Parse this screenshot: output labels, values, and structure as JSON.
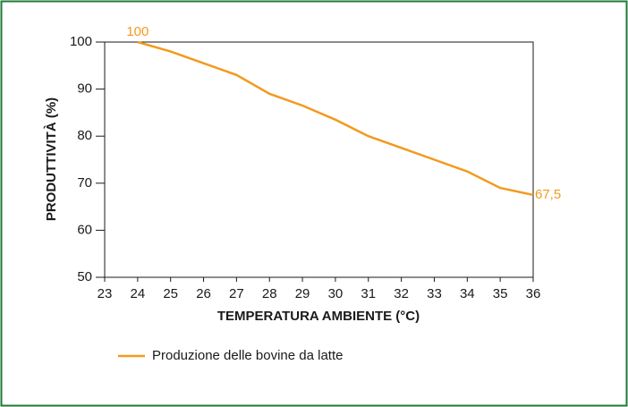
{
  "chart_data": {
    "type": "line",
    "x_label": "TEMPERATURA AMBIENTE (°C)",
    "y_label": "PRODUTTIVITÀ (%)",
    "x": [
      24,
      25,
      26,
      27,
      28,
      29,
      30,
      31,
      32,
      33,
      34,
      35,
      36
    ],
    "series": [
      {
        "name": "Produzione delle bovine da latte",
        "color": "#f29a1f",
        "values": [
          100,
          98,
          95.5,
          93,
          89,
          86.5,
          83.5,
          80,
          77.5,
          75,
          72.5,
          69,
          67.5
        ],
        "value_labels": [
          "100",
          null,
          null,
          null,
          null,
          null,
          null,
          null,
          null,
          null,
          null,
          null,
          "67,5"
        ]
      }
    ],
    "xlim": [
      23,
      36
    ],
    "xticks": [
      23,
      24,
      25,
      26,
      27,
      28,
      29,
      30,
      31,
      32,
      33,
      34,
      35,
      36
    ],
    "ylim": [
      50,
      100
    ],
    "yticks": [
      50,
      60,
      70,
      80,
      90,
      100
    ],
    "border_color": "#1e7a36"
  }
}
